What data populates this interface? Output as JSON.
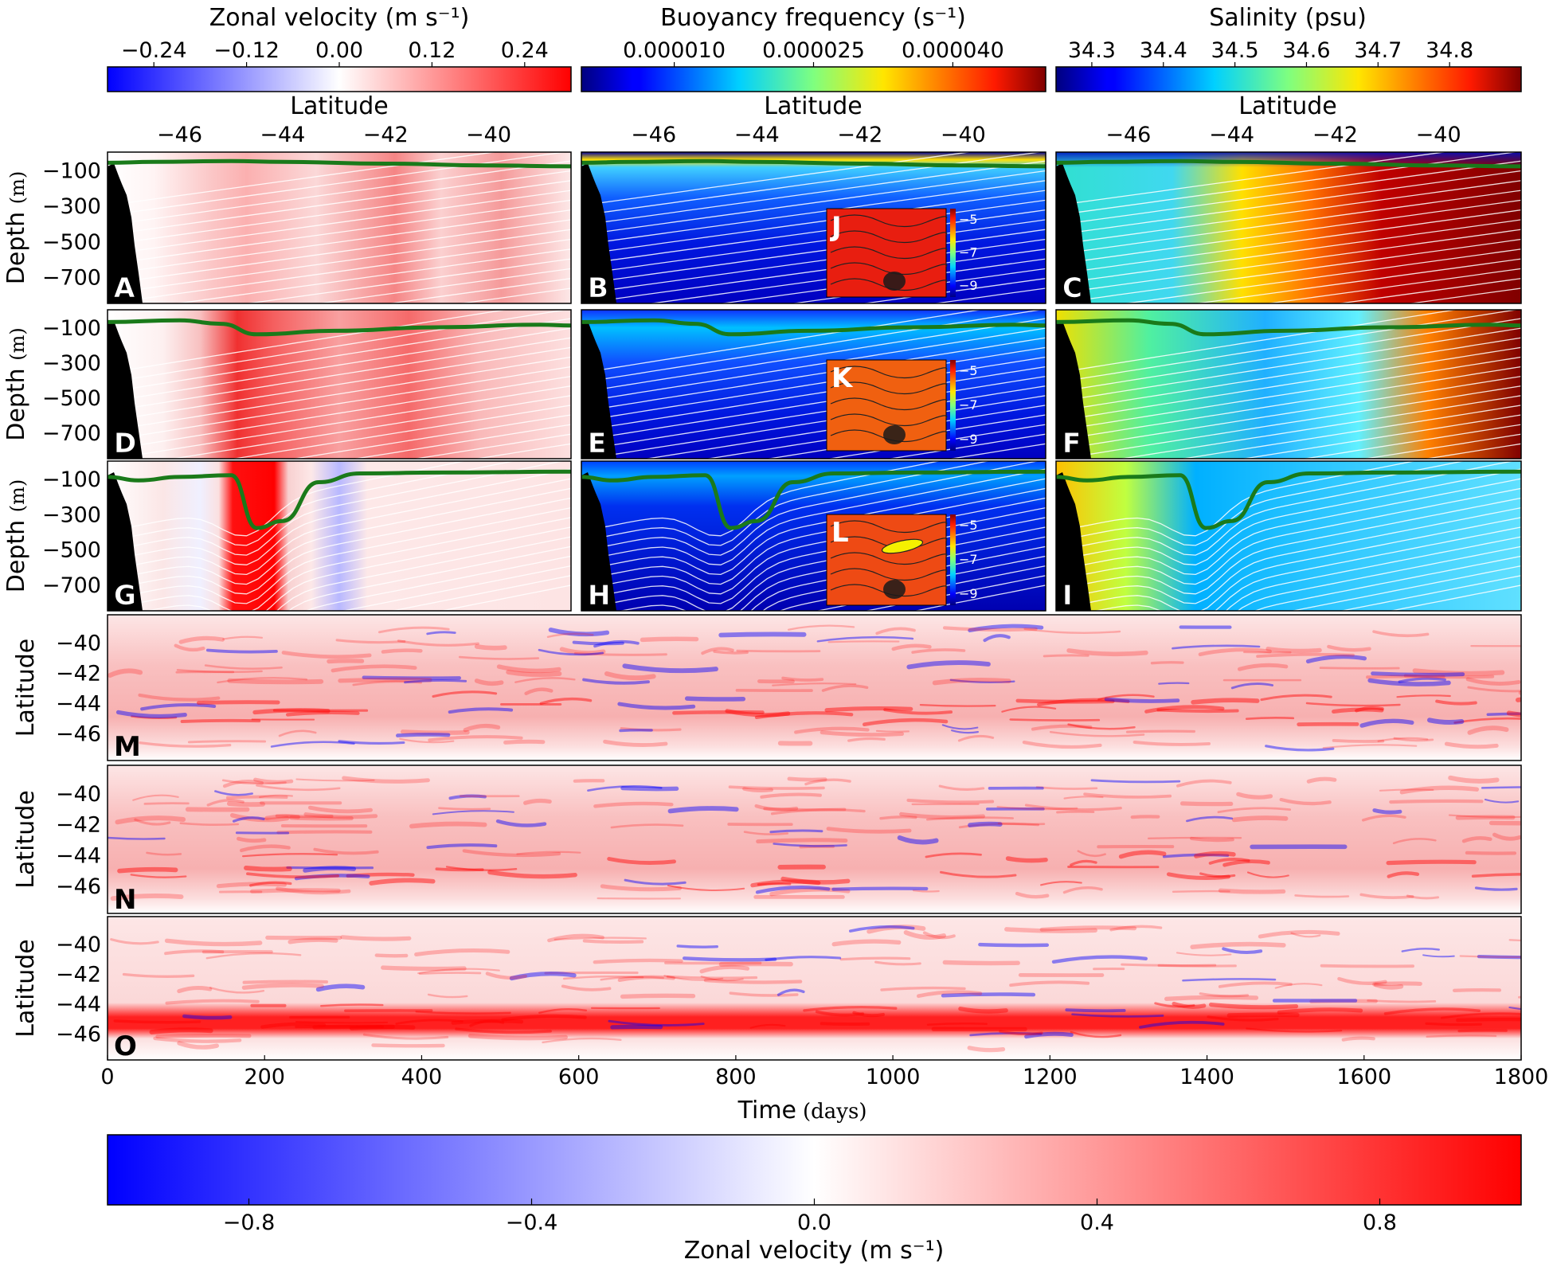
{
  "chart_data": [
    {
      "type": "heatmap",
      "panel_label": "A",
      "variable": "Zonal velocity",
      "xlabel": "Latitude",
      "ylabel": "Depth (m)",
      "x_ticks": [
        -46,
        -44,
        -42,
        -40
      ],
      "y_ticks": [
        -100,
        -300,
        -500,
        -700
      ],
      "xlim": [
        -47.4,
        -38.4
      ],
      "ylim": [
        -850,
        0
      ],
      "colorbar": {
        "title": "Zonal velocity (m s⁻¹)",
        "ticks": [
          "−0.24",
          "−0.12",
          "0.00",
          "0.12",
          "0.24"
        ],
        "range": [
          -0.3,
          0.3
        ],
        "colormap": "blue-white-red"
      },
      "mixed_layer_depth": {
        "color": "#1a7a1a",
        "lat": [
          -47.4,
          -46.5,
          -45,
          -44,
          -42,
          -40,
          -38.4
        ],
        "depth": [
          -60,
          -55,
          -50,
          -55,
          -65,
          -75,
          -80
        ]
      },
      "isopycnals": "white contours"
    },
    {
      "type": "heatmap",
      "panel_label": "B",
      "variable": "Buoyancy frequency",
      "colorbar": {
        "title": "Buoyancy frequency (s⁻¹)",
        "ticks": [
          "0.000010",
          "0.000025",
          "0.000040"
        ],
        "range": [
          0,
          5e-05
        ],
        "colormap": "jet"
      },
      "mixed_layer_depth": {
        "lat": [
          -47.4,
          -46.5,
          -45,
          -44,
          -42,
          -40,
          -38.4
        ],
        "depth": [
          -60,
          -55,
          -50,
          -55,
          -65,
          -75,
          -80
        ]
      },
      "inset_label": "J"
    },
    {
      "type": "heatmap",
      "panel_label": "C",
      "variable": "Salinity",
      "colorbar": {
        "title": "Salinity (psu)",
        "ticks": [
          "34.3",
          "34.4",
          "34.5",
          "34.6",
          "34.7",
          "34.8"
        ],
        "range": [
          34.25,
          34.9
        ],
        "colormap": "jet"
      },
      "mixed_layer_depth": {
        "lat": [
          -47.4,
          -46.5,
          -45,
          -44,
          -42,
          -40,
          -38.4
        ],
        "depth": [
          -60,
          -55,
          -50,
          -55,
          -65,
          -75,
          -80
        ]
      }
    },
    {
      "type": "heatmap",
      "panel_label": "D",
      "variable": "Zonal velocity",
      "mixed_layer_depth": {
        "lat": [
          -47.4,
          -46,
          -45.2,
          -44.5,
          -43,
          -41,
          -39,
          -38.4
        ],
        "depth": [
          -70,
          -60,
          -80,
          -140,
          -120,
          -100,
          -85,
          -90
        ]
      }
    },
    {
      "type": "heatmap",
      "panel_label": "E",
      "variable": "Buoyancy frequency",
      "inset_label": "K",
      "mixed_layer_depth": {
        "lat": [
          -47.4,
          -46,
          -45.2,
          -44.5,
          -43,
          -41,
          -39,
          -38.4
        ],
        "depth": [
          -70,
          -60,
          -80,
          -140,
          -120,
          -100,
          -85,
          -90
        ]
      }
    },
    {
      "type": "heatmap",
      "panel_label": "F",
      "variable": "Salinity",
      "mixed_layer_depth": {
        "lat": [
          -47.4,
          -46,
          -45.2,
          -44.5,
          -43,
          -41,
          -39,
          -38.4
        ],
        "depth": [
          -70,
          -60,
          -80,
          -140,
          -120,
          -100,
          -85,
          -90
        ]
      }
    },
    {
      "type": "heatmap",
      "panel_label": "G",
      "variable": "Zonal velocity",
      "mixed_layer_depth": {
        "lat": [
          -47.4,
          -46.8,
          -46,
          -45,
          -44.5,
          -44,
          -43.3,
          -42.5,
          -41,
          -38.4
        ],
        "depth": [
          -90,
          -110,
          -90,
          -80,
          -380,
          -340,
          -120,
          -70,
          -65,
          -60
        ]
      }
    },
    {
      "type": "heatmap",
      "panel_label": "H",
      "variable": "Buoyancy frequency",
      "inset_label": "L",
      "mixed_layer_depth": {
        "lat": [
          -47.4,
          -46.8,
          -46,
          -45,
          -44.5,
          -44,
          -43.3,
          -42.5,
          -41,
          -38.4
        ],
        "depth": [
          -90,
          -110,
          -90,
          -80,
          -380,
          -340,
          -120,
          -70,
          -65,
          -60
        ]
      }
    },
    {
      "type": "heatmap",
      "panel_label": "I",
      "variable": "Salinity",
      "mixed_layer_depth": {
        "lat": [
          -47.4,
          -46.8,
          -46,
          -45,
          -44.5,
          -44,
          -43.3,
          -42.5,
          -41,
          -38.4
        ],
        "depth": [
          -90,
          -110,
          -90,
          -80,
          -380,
          -340,
          -120,
          -70,
          -65,
          -60
        ]
      }
    },
    {
      "type": "heatmap",
      "panel_label": "J",
      "inset": true,
      "colorbar_ticks": [
        "−5",
        "−7",
        "−9"
      ],
      "dominant_color": "red"
    },
    {
      "type": "heatmap",
      "panel_label": "K",
      "inset": true,
      "colorbar_ticks": [
        "−5",
        "−7",
        "−9"
      ],
      "dominant_color": "orange"
    },
    {
      "type": "heatmap",
      "panel_label": "L",
      "inset": true,
      "colorbar_ticks": [
        "−5",
        "−7",
        "−9"
      ],
      "dominant_color": "orange-red"
    },
    {
      "type": "heatmap",
      "panel_label": "M",
      "variable": "Zonal velocity (Hovmöller)",
      "xlabel": "Time (days)",
      "ylabel": "Latitude",
      "x_ticks": [
        0,
        200,
        400,
        600,
        800,
        1000,
        1200,
        1400,
        1600,
        1800
      ],
      "y_ticks": [
        -40,
        -42,
        -44,
        -46
      ],
      "xlim": [
        0,
        1800
      ],
      "ylim": [
        -47.8,
        -38.2
      ],
      "jet_core_latitude": -44.5
    },
    {
      "type": "heatmap",
      "panel_label": "N",
      "variable": "Zonal velocity (Hovmöller)",
      "jet_core_latitude": -45.0
    },
    {
      "type": "heatmap",
      "panel_label": "O",
      "variable": "Zonal velocity (Hovmöller)",
      "jet_core_latitude": -45.0
    },
    {
      "type": "colorbar",
      "title": "Zonal velocity (m s⁻¹)",
      "ticks": [
        "−0.8",
        "−0.4",
        "0.0",
        "0.4",
        "0.8"
      ],
      "tick_values": [
        -0.8,
        -0.4,
        0.0,
        0.4,
        0.8
      ],
      "range": [
        -1.0,
        1.0
      ],
      "colormap": "blue-white-red"
    }
  ],
  "labels": {
    "latitude": "Latitude",
    "depth_prefix": "Depth",
    "depth_unit": "(m)",
    "time_prefix": "Time",
    "time_unit": "(days)"
  },
  "colors": {
    "mld": "#1a7a1a",
    "blue": "#0000ff",
    "red": "#ff0000",
    "topo": "#000000"
  }
}
